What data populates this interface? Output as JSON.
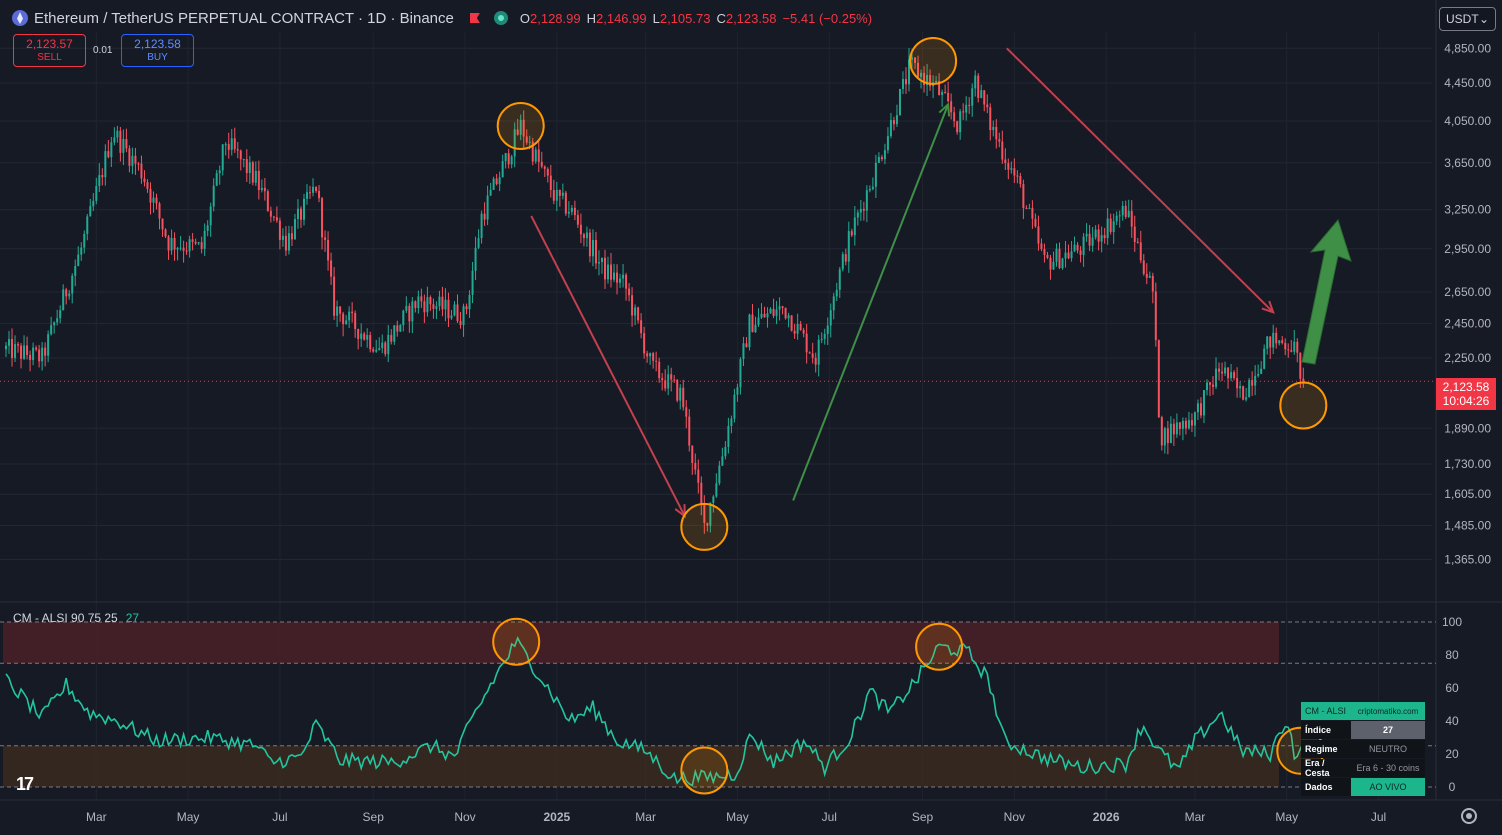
{
  "header": {
    "symbol_title": "Ethereum / TetherUS PERPETUAL CONTRACT · 1D · Binance",
    "ohlc": [
      {
        "key": "O",
        "value": "2,128.99"
      },
      {
        "key": "H",
        "value": "2,146.99"
      },
      {
        "key": "L",
        "value": "2,105.73"
      },
      {
        "key": "C",
        "value": "2,123.58"
      }
    ],
    "change": "−5.41 (−0.25%)"
  },
  "trade": {
    "sell_price": "2,123.57",
    "sell_label": "SELL",
    "spread": "0.01",
    "buy_price": "2,123.58",
    "buy_label": "BUY"
  },
  "currency_select": {
    "value": "USDT",
    "arrow": "⌄"
  },
  "last_price": {
    "value": "2,123.58",
    "countdown": "10:04:26"
  },
  "indicator": {
    "name": "CM - ALSI 90 75 25",
    "value": "27"
  },
  "info_table": {
    "title": "CM - ALSI",
    "source": "criptomatiko.com",
    "rows": [
      {
        "label": "Índice",
        "value": "27"
      },
      {
        "label": "Regime",
        "value": "NEUTRO"
      },
      {
        "label": "Era / Cesta",
        "value": "Era 6 - 30 coins"
      },
      {
        "label": "Dados",
        "value": "AO VIVO"
      }
    ]
  },
  "logo_text": "17",
  "colors": {
    "background": "#161a25",
    "candle_up": "#22ab94",
    "candle_down": "#f7525f",
    "indicator_line": "#22c5a0",
    "top_zone": "#4a2027",
    "bottom_zone": "#3a2a1e",
    "circle": "#ff9800",
    "arrow_down": "#c2404f",
    "arrow_up": "#3f8f47"
  },
  "chart_data": [
    {
      "type": "candlestick",
      "title": "Ethereum / TetherUS PERPETUAL CONTRACT · 1D · Binance",
      "y_scale": "log",
      "ylim": [
        1250,
        5050
      ],
      "y_ticks": [
        "4,850.00",
        "4,450.00",
        "4,050.00",
        "3,650.00",
        "3,250.00",
        "2,950.00",
        "2,650.00",
        "2,450.00",
        "2,250.00",
        "1,890.00",
        "1,730.00",
        "1,605.00",
        "1,485.00",
        "1,365.00"
      ],
      "x_ticks": [
        "Mar",
        "May",
        "Jul",
        "Sep",
        "Nov",
        "2025",
        "Mar",
        "May",
        "Jul",
        "Sep",
        "Nov",
        "2026",
        "Mar",
        "May",
        "Jul"
      ],
      "series": [
        {
          "values": [
            {
              "date": "2024-01-01",
              "price": 2300
            },
            {
              "date": "2024-01-25",
              "price": 2250
            },
            {
              "date": "2024-02-20",
              "price": 2950
            },
            {
              "date": "2024-03-12",
              "price": 3950
            },
            {
              "date": "2024-04-01",
              "price": 3550
            },
            {
              "date": "2024-04-18",
              "price": 3000
            },
            {
              "date": "2024-05-10",
              "price": 2950
            },
            {
              "date": "2024-05-26",
              "price": 3850
            },
            {
              "date": "2024-06-15",
              "price": 3500
            },
            {
              "date": "2024-07-05",
              "price": 3000
            },
            {
              "date": "2024-07-25",
              "price": 3450
            },
            {
              "date": "2024-08-06",
              "price": 2550
            },
            {
              "date": "2024-09-06",
              "price": 2300
            },
            {
              "date": "2024-10-01",
              "price": 2600
            },
            {
              "date": "2024-11-01",
              "price": 2500
            },
            {
              "date": "2024-11-12",
              "price": 3200
            },
            {
              "date": "2024-12-08",
              "price": 4000
            },
            {
              "date": "2024-12-31",
              "price": 3350
            },
            {
              "date": "2025-01-10",
              "price": 3250
            },
            {
              "date": "2025-02-01",
              "price": 2800
            },
            {
              "date": "2025-02-15",
              "price": 2700
            },
            {
              "date": "2025-03-05",
              "price": 2200
            },
            {
              "date": "2025-03-25",
              "price": 2050
            },
            {
              "date": "2025-04-09",
              "price": 1480
            },
            {
              "date": "2025-04-22",
              "price": 1800
            },
            {
              "date": "2025-05-09",
              "price": 2450
            },
            {
              "date": "2025-06-01",
              "price": 2550
            },
            {
              "date": "2025-06-22",
              "price": 2250
            },
            {
              "date": "2025-07-15",
              "price": 3050
            },
            {
              "date": "2025-08-01",
              "price": 3600
            },
            {
              "date": "2025-08-24",
              "price": 4650
            },
            {
              "date": "2025-09-10",
              "price": 4400
            },
            {
              "date": "2025-09-25",
              "price": 4000
            },
            {
              "date": "2025-10-06",
              "price": 4500
            },
            {
              "date": "2025-10-15",
              "price": 4050
            },
            {
              "date": "2025-11-04",
              "price": 3450
            },
            {
              "date": "2025-11-21",
              "price": 2850
            },
            {
              "date": "2025-12-15",
              "price": 2950
            },
            {
              "date": "2026-01-14",
              "price": 3250
            },
            {
              "date": "2026-02-01",
              "price": 2650
            },
            {
              "date": "2026-02-06",
              "price": 1850
            },
            {
              "date": "2026-03-01",
              "price": 1950
            },
            {
              "date": "2026-03-18",
              "price": 2200
            },
            {
              "date": "2026-04-01",
              "price": 2050
            },
            {
              "date": "2026-04-20",
              "price": 2350
            },
            {
              "date": "2026-05-05",
              "price": 2330
            },
            {
              "date": "2026-05-12",
              "price": 2124
            }
          ]
        }
      ]
    },
    {
      "type": "line",
      "title": "CM - ALSI 90 75 25",
      "ylim": [
        0,
        100
      ],
      "y_ticks": [
        "100",
        "80",
        "60",
        "40",
        "20",
        "0"
      ],
      "zones": [
        {
          "from": 75,
          "to": 100
        },
        {
          "from": 0,
          "to": 25
        }
      ],
      "series": [
        {
          "name": "CM - ALSI",
          "values": [
            {
              "date": "2024-01-01",
              "value": 65
            },
            {
              "date": "2024-01-25",
              "value": 42
            },
            {
              "date": "2024-02-10",
              "value": 62
            },
            {
              "date": "2024-02-25",
              "value": 45
            },
            {
              "date": "2024-03-15",
              "value": 40
            },
            {
              "date": "2024-04-10",
              "value": 28
            },
            {
              "date": "2024-05-15",
              "value": 30
            },
            {
              "date": "2024-06-15",
              "value": 25
            },
            {
              "date": "2024-06-25",
              "value": 15
            },
            {
              "date": "2024-07-15",
              "value": 18
            },
            {
              "date": "2024-07-25",
              "value": 38
            },
            {
              "date": "2024-08-10",
              "value": 16
            },
            {
              "date": "2024-09-15",
              "value": 15
            },
            {
              "date": "2024-10-10",
              "value": 25
            },
            {
              "date": "2024-10-25",
              "value": 18
            },
            {
              "date": "2024-11-08",
              "value": 45
            },
            {
              "date": "2024-11-20",
              "value": 65
            },
            {
              "date": "2024-12-05",
              "value": 88
            },
            {
              "date": "2024-12-15",
              "value": 75
            },
            {
              "date": "2025-01-10",
              "value": 40
            },
            {
              "date": "2025-01-25",
              "value": 48
            },
            {
              "date": "2025-02-10",
              "value": 28
            },
            {
              "date": "2025-03-01",
              "value": 22
            },
            {
              "date": "2025-03-20",
              "value": 5
            },
            {
              "date": "2025-04-15",
              "value": 6
            },
            {
              "date": "2025-04-30",
              "value": 8
            },
            {
              "date": "2025-05-10",
              "value": 32
            },
            {
              "date": "2025-05-25",
              "value": 15
            },
            {
              "date": "2025-06-15",
              "value": 28
            },
            {
              "date": "2025-06-28",
              "value": 12
            },
            {
              "date": "2025-07-15",
              "value": 30
            },
            {
              "date": "2025-07-28",
              "value": 58
            },
            {
              "date": "2025-08-10",
              "value": 45
            },
            {
              "date": "2025-08-28",
              "value": 65
            },
            {
              "date": "2025-09-12",
              "value": 85
            },
            {
              "date": "2025-10-01",
              "value": 82
            },
            {
              "date": "2025-10-15",
              "value": 65
            },
            {
              "date": "2025-10-25",
              "value": 28
            },
            {
              "date": "2025-11-20",
              "value": 18
            },
            {
              "date": "2025-12-15",
              "value": 12
            },
            {
              "date": "2026-01-14",
              "value": 14
            },
            {
              "date": "2026-01-25",
              "value": 38
            },
            {
              "date": "2026-02-05",
              "value": 22
            },
            {
              "date": "2026-02-18",
              "value": 10
            },
            {
              "date": "2026-03-01",
              "value": 28
            },
            {
              "date": "2026-03-18",
              "value": 45
            },
            {
              "date": "2026-04-01",
              "value": 22
            },
            {
              "date": "2026-04-20",
              "value": 20
            },
            {
              "date": "2026-05-01",
              "value": 42
            },
            {
              "date": "2026-05-07",
              "value": 17
            },
            {
              "date": "2026-05-12",
              "value": 27
            }
          ]
        }
      ]
    }
  ]
}
